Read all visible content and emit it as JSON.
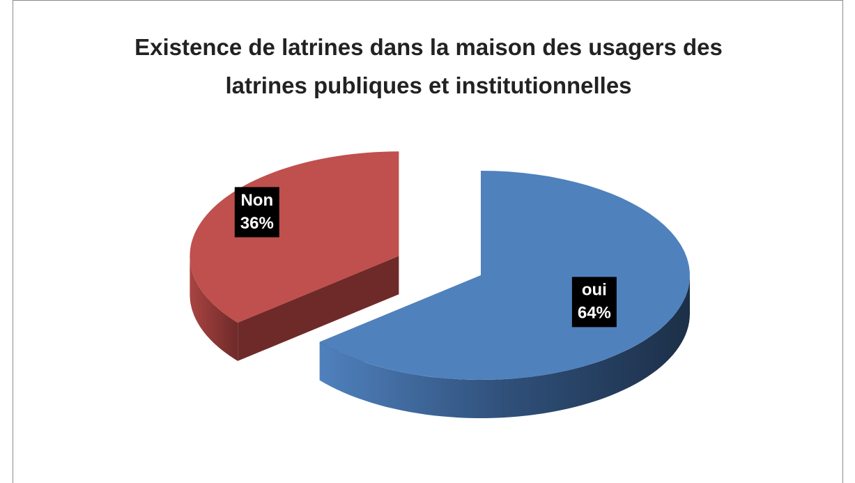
{
  "chart_data": {
    "type": "pie3d",
    "title": "Existence de latrines dans la maison des usagers des latrines publiques et institutionnelles",
    "categories": [
      "oui",
      "Non"
    ],
    "values": [
      64,
      36
    ],
    "value_labels": [
      "64%",
      "36%"
    ],
    "colors": [
      "#4f81bd",
      "#c0504d"
    ]
  }
}
